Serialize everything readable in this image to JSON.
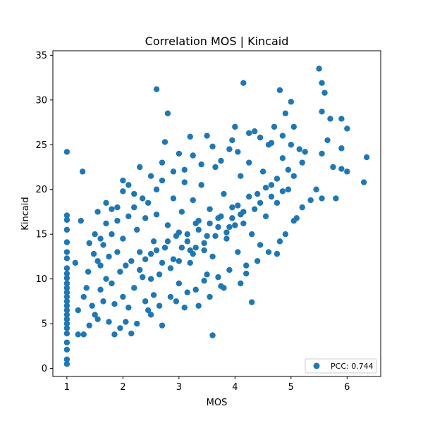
{
  "chart_data": {
    "type": "scatter",
    "title": "Correlation MOS | Kincaid",
    "xlabel": "MOS",
    "ylabel": "Kincaid",
    "xlim": [
      0.75,
      6.6
    ],
    "ylim": [
      -0.9,
      35.5
    ],
    "xticks": [
      "1",
      "2",
      "3",
      "4",
      "5",
      "6"
    ],
    "yticks": [
      "0",
      "5",
      "10",
      "15",
      "20",
      "25",
      "30",
      "35"
    ],
    "grid": false,
    "legend_position": "lower-right",
    "marker_color": "#1f77b4",
    "series": [
      {
        "name": "PCC: 0.744",
        "points": [
          [
            1.0,
            0.5
          ],
          [
            1.0,
            1.0
          ],
          [
            1.0,
            2.1
          ],
          [
            1.0,
            2.9
          ],
          [
            1.0,
            3.9
          ],
          [
            1.0,
            4.5
          ],
          [
            1.0,
            5.0
          ],
          [
            1.0,
            5.5
          ],
          [
            1.0,
            6.0
          ],
          [
            1.0,
            6.5
          ],
          [
            1.0,
            7.0
          ],
          [
            1.0,
            7.5
          ],
          [
            1.0,
            8.0
          ],
          [
            1.0,
            8.5
          ],
          [
            1.0,
            9.0
          ],
          [
            1.0,
            9.5
          ],
          [
            1.0,
            10.1
          ],
          [
            1.0,
            10.6
          ],
          [
            1.0,
            11.2
          ],
          [
            1.0,
            12.3
          ],
          [
            1.0,
            13.0
          ],
          [
            1.0,
            14.1
          ],
          [
            1.0,
            15.5
          ],
          [
            1.0,
            16.6
          ],
          [
            1.0,
            17.1
          ],
          [
            1.0,
            24.2
          ],
          [
            1.15,
            11.8
          ],
          [
            1.2,
            6.5
          ],
          [
            1.2,
            3.8
          ],
          [
            1.25,
            16.5
          ],
          [
            1.28,
            22.0
          ],
          [
            1.3,
            3.8
          ],
          [
            1.3,
            8.0
          ],
          [
            1.35,
            9.0
          ],
          [
            1.38,
            10.8
          ],
          [
            1.4,
            14.0
          ],
          [
            1.4,
            4.8
          ],
          [
            1.45,
            7.0
          ],
          [
            1.48,
            12.8
          ],
          [
            1.5,
            6.0
          ],
          [
            1.55,
            17.5
          ],
          [
            1.55,
            5.5
          ],
          [
            1.6,
            11.5
          ],
          [
            1.6,
            8.8
          ],
          [
            1.65,
            13.8
          ],
          [
            1.65,
            7.5
          ],
          [
            1.7,
            10.0
          ],
          [
            1.7,
            16.2
          ],
          [
            1.75,
            5.2
          ],
          [
            1.75,
            12.5
          ],
          [
            1.8,
            9.5
          ],
          [
            1.8,
            15.0
          ],
          [
            1.85,
            7.2
          ],
          [
            1.85,
            3.8
          ],
          [
            1.9,
            13.0
          ],
          [
            1.9,
            18.0
          ],
          [
            1.95,
            10.8
          ],
          [
            1.95,
            4.5
          ],
          [
            2.0,
            21.0
          ],
          [
            2.0,
            8.0
          ],
          [
            2.0,
            14.5
          ],
          [
            2.05,
            11.5
          ],
          [
            2.1,
            17.0
          ],
          [
            2.1,
            6.8
          ],
          [
            2.15,
            12.0
          ],
          [
            2.2,
            19.5
          ],
          [
            2.2,
            9.0
          ],
          [
            2.25,
            15.5
          ],
          [
            2.3,
            13.0
          ],
          [
            2.3,
            22.5
          ],
          [
            2.35,
            10.2
          ],
          [
            2.4,
            16.8
          ],
          [
            2.4,
            7.5
          ],
          [
            2.45,
            18.5
          ],
          [
            2.5,
            12.8
          ],
          [
            2.5,
            6.0
          ],
          [
            2.55,
            14.2
          ],
          [
            2.6,
            31.2
          ],
          [
            2.6,
            17.2
          ],
          [
            2.65,
            10.5
          ],
          [
            2.7,
            21.0
          ],
          [
            2.7,
            4.8
          ],
          [
            2.75,
            25.3
          ],
          [
            2.75,
            13.5
          ],
          [
            2.8,
            28.5
          ],
          [
            2.8,
            16.0
          ],
          [
            2.85,
            11.2
          ],
          [
            2.9,
            19.0
          ],
          [
            2.95,
            14.8
          ],
          [
            3.0,
            12.0
          ],
          [
            3.0,
            9.5
          ],
          [
            3.05,
            17.5
          ],
          [
            3.1,
            6.8
          ],
          [
            3.1,
            22.2
          ],
          [
            3.15,
            15.0
          ],
          [
            3.2,
            25.9
          ],
          [
            3.2,
            11.8
          ],
          [
            3.25,
            18.8
          ],
          [
            3.3,
            13.5
          ],
          [
            3.3,
            8.8
          ],
          [
            3.35,
            16.5
          ],
          [
            3.4,
            20.5
          ],
          [
            3.45,
            14.0
          ],
          [
            3.5,
            26.0
          ],
          [
            3.5,
            10.5
          ],
          [
            3.55,
            17.8
          ],
          [
            3.6,
            12.5
          ],
          [
            3.6,
            3.7
          ],
          [
            3.65,
            22.5
          ],
          [
            3.7,
            15.8
          ],
          [
            3.75,
            9.2
          ],
          [
            3.8,
            19.5
          ],
          [
            3.85,
            14.5
          ],
          [
            3.9,
            24.5
          ],
          [
            3.9,
            11.0
          ],
          [
            3.95,
            18.0
          ],
          [
            4.0,
            27.0
          ],
          [
            4.0,
            16.0
          ],
          [
            4.05,
            13.0
          ],
          [
            4.1,
            21.5
          ],
          [
            4.15,
            31.9
          ],
          [
            4.15,
            17.5
          ],
          [
            4.2,
            10.6
          ],
          [
            4.25,
            23.0
          ],
          [
            4.3,
            15.0
          ],
          [
            4.3,
            7.4
          ],
          [
            4.35,
            26.5
          ],
          [
            4.4,
            19.5
          ],
          [
            4.45,
            13.8
          ],
          [
            4.5,
            22.0
          ],
          [
            4.55,
            17.0
          ],
          [
            4.6,
            25.0
          ],
          [
            4.65,
            20.5
          ],
          [
            4.7,
            27.0
          ],
          [
            4.75,
            18.5
          ],
          [
            4.8,
            31.1
          ],
          [
            4.8,
            14.2
          ],
          [
            4.85,
            23.5
          ],
          [
            4.9,
            28.5
          ],
          [
            4.95,
            20.0
          ],
          [
            5.0,
            29.8
          ],
          [
            5.0,
            25.0
          ],
          [
            5.05,
            21.5
          ],
          [
            5.1,
            16.8
          ],
          [
            5.15,
            24.5
          ],
          [
            5.2,
            23.0
          ],
          [
            5.5,
            33.5
          ],
          [
            5.55,
            31.9
          ],
          [
            5.55,
            28.7
          ],
          [
            5.55,
            24.0
          ],
          [
            5.55,
            19.0
          ],
          [
            5.6,
            30.8
          ],
          [
            5.65,
            25.5
          ],
          [
            5.7,
            27.9
          ],
          [
            5.75,
            22.5
          ],
          [
            5.8,
            19.0
          ],
          [
            5.9,
            27.9
          ],
          [
            5.9,
            24.6
          ],
          [
            5.9,
            22.3
          ],
          [
            6.0,
            26.8
          ],
          [
            6.0,
            22.0
          ],
          [
            6.3,
            20.8
          ],
          [
            6.35,
            23.6
          ],
          [
            2.05,
            5.2
          ],
          [
            2.15,
            3.9
          ],
          [
            2.25,
            5.0
          ],
          [
            2.45,
            6.5
          ],
          [
            2.55,
            8.2
          ],
          [
            2.65,
            7.0
          ],
          [
            2.85,
            8.0
          ],
          [
            2.95,
            7.5
          ],
          [
            3.15,
            8.5
          ],
          [
            3.35,
            7.0
          ],
          [
            3.45,
            9.8
          ],
          [
            3.55,
            8.0
          ],
          [
            3.7,
            10.2
          ],
          [
            3.8,
            9.0
          ],
          [
            4.1,
            9.5
          ],
          [
            4.2,
            11.5
          ],
          [
            4.4,
            12.0
          ],
          [
            4.6,
            13.0
          ],
          [
            4.75,
            12.8
          ],
          [
            4.9,
            15.0
          ],
          [
            5.05,
            16.5
          ],
          [
            5.2,
            18.0
          ],
          [
            5.35,
            18.8
          ],
          [
            5.45,
            20.0
          ],
          [
            1.5,
            15.0
          ],
          [
            1.55,
            12.0
          ],
          [
            1.6,
            14.5
          ],
          [
            1.7,
            18.5
          ],
          [
            1.8,
            17.8
          ],
          [
            1.9,
            16.5
          ],
          [
            2.0,
            19.8
          ],
          [
            2.1,
            20.5
          ],
          [
            2.2,
            18.0
          ],
          [
            2.35,
            19.0
          ],
          [
            2.5,
            21.5
          ],
          [
            2.6,
            20.0
          ],
          [
            2.7,
            23.0
          ],
          [
            2.9,
            22.0
          ],
          [
            3.0,
            24.0
          ],
          [
            3.1,
            20.8
          ],
          [
            3.25,
            23.8
          ],
          [
            3.4,
            22.8
          ],
          [
            3.6,
            24.8
          ],
          [
            3.75,
            23.2
          ],
          [
            3.95,
            25.5
          ],
          [
            4.05,
            24.2
          ],
          [
            4.25,
            26.3
          ],
          [
            4.45,
            25.8
          ],
          [
            4.65,
            25.2
          ],
          [
            4.85,
            26.0
          ],
          [
            5.05,
            27.0
          ],
          [
            5.25,
            24.2
          ],
          [
            3.05,
            13.5
          ],
          [
            3.15,
            14.2
          ],
          [
            3.25,
            12.8
          ],
          [
            3.35,
            15.5
          ],
          [
            3.45,
            13.2
          ],
          [
            3.55,
            16.2
          ],
          [
            3.65,
            14.8
          ],
          [
            3.75,
            17.0
          ],
          [
            3.85,
            15.2
          ],
          [
            3.95,
            16.8
          ],
          [
            4.05,
            18.2
          ],
          [
            4.15,
            16.2
          ],
          [
            4.25,
            19.2
          ],
          [
            4.35,
            17.8
          ],
          [
            4.45,
            18.5
          ],
          [
            4.55,
            20.2
          ],
          [
            4.65,
            19.2
          ],
          [
            4.75,
            21.2
          ],
          [
            4.85,
            19.8
          ],
          [
            4.95,
            22.2
          ],
          [
            2.3,
            11.0
          ],
          [
            2.4,
            12.2
          ],
          [
            2.5,
            10.0
          ],
          [
            2.6,
            13.2
          ],
          [
            2.7,
            11.8
          ],
          [
            2.8,
            14.2
          ],
          [
            2.9,
            12.2
          ],
          [
            3.0,
            15.2
          ],
          [
            3.2,
            13.2
          ],
          [
            3.3,
            16.2
          ],
          [
            3.5,
            14.8
          ],
          [
            3.7,
            16.8
          ],
          [
            3.9,
            15.8
          ],
          [
            4.1,
            17.2
          ]
        ]
      }
    ]
  }
}
